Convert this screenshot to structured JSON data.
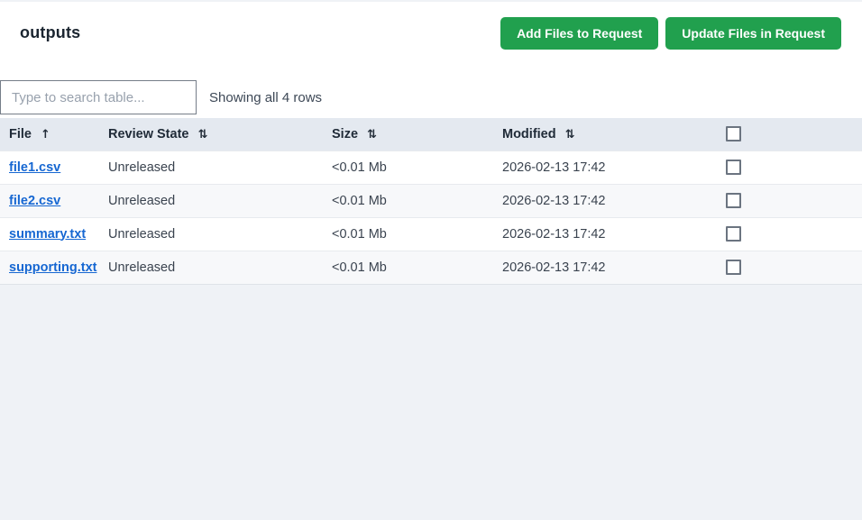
{
  "page": {
    "title": "outputs",
    "background_color": "#eff2f6",
    "accent_green": "#21a04e",
    "link_blue": "#1667d2",
    "header_band_color": "#e4e9f0"
  },
  "toolbar": {
    "add_button_label": "Add Files to Request",
    "update_button_label": "Update Files in Request"
  },
  "search": {
    "placeholder": "Type to search table...",
    "value": "",
    "status_text": "Showing all 4 rows"
  },
  "table": {
    "columns": [
      {
        "label": "File",
        "sort_icon": "↑",
        "sort_state": "ascending"
      },
      {
        "label": "Review State",
        "sort_icon": "⇅",
        "sort_state": "none"
      },
      {
        "label": "Size",
        "sort_icon": "⇅",
        "sort_state": "none"
      },
      {
        "label": "Modified",
        "sort_icon": "⇅",
        "sort_state": "none"
      },
      {
        "label": "",
        "sort_state": "none"
      }
    ],
    "rows": [
      {
        "file": "file1.csv",
        "review_state": "Unreleased",
        "size": "<0.01 Mb",
        "modified": "2026-02-13 17:42",
        "checked": false
      },
      {
        "file": "file2.csv",
        "review_state": "Unreleased",
        "size": "<0.01 Mb",
        "modified": "2026-02-13 17:42",
        "checked": false
      },
      {
        "file": "summary.txt",
        "review_state": "Unreleased",
        "size": "<0.01 Mb",
        "modified": "2026-02-13 17:42",
        "checked": false
      },
      {
        "file": "supporting.txt",
        "review_state": "Unreleased",
        "size": "<0.01 Mb",
        "modified": "2026-02-13 17:42",
        "checked": false
      }
    ]
  }
}
